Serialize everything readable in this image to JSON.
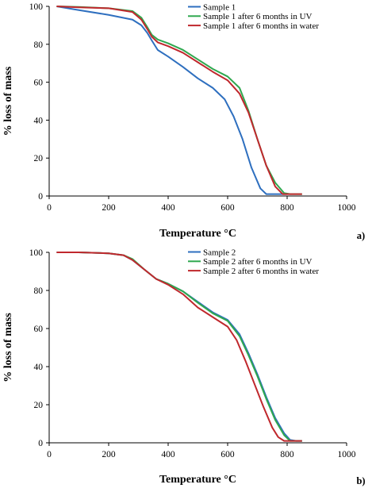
{
  "chart_data": [
    {
      "type": "line",
      "panel_label": "a)",
      "xlabel": "Temperature °C",
      "ylabel": "% loss of mass",
      "xlim": [
        0,
        1000
      ],
      "ylim": [
        0,
        100
      ],
      "xticks": [
        "0",
        "200",
        "400",
        "600",
        "800",
        "1000"
      ],
      "yticks": [
        "0",
        "20",
        "40",
        "60",
        "80",
        "100"
      ],
      "grid": false,
      "legend_position": "top-right",
      "series": [
        {
          "name": "Sample 1",
          "color": "#2e6fbf",
          "points": [
            [
              25,
              100
            ],
            [
              100,
              98
            ],
            [
              200,
              95.5
            ],
            [
              280,
              93
            ],
            [
              310,
              90
            ],
            [
              330,
              86
            ],
            [
              345,
              82
            ],
            [
              365,
              77
            ],
            [
              400,
              73.5
            ],
            [
              450,
              68
            ],
            [
              500,
              62
            ],
            [
              550,
              57
            ],
            [
              590,
              51
            ],
            [
              620,
              42
            ],
            [
              650,
              30
            ],
            [
              680,
              15
            ],
            [
              710,
              4
            ],
            [
              730,
              1
            ],
            [
              800,
              1
            ]
          ]
        },
        {
          "name": "Sample 1 after 6 months in UV",
          "color": "#2fa84f",
          "points": [
            [
              25,
              100
            ],
            [
              100,
              99.7
            ],
            [
              200,
              99
            ],
            [
              280,
              97.5
            ],
            [
              310,
              94
            ],
            [
              330,
              89
            ],
            [
              345,
              85
            ],
            [
              365,
              82.5
            ],
            [
              400,
              80.5
            ],
            [
              450,
              77
            ],
            [
              500,
              72
            ],
            [
              550,
              67
            ],
            [
              600,
              63
            ],
            [
              640,
              57
            ],
            [
              670,
              45
            ],
            [
              700,
              30
            ],
            [
              730,
              16
            ],
            [
              760,
              7
            ],
            [
              790,
              1.5
            ],
            [
              810,
              1
            ],
            [
              850,
              1
            ]
          ]
        },
        {
          "name": "Sample 1 after 6 months in water",
          "color": "#c0282d",
          "points": [
            [
              25,
              100
            ],
            [
              100,
              99.5
            ],
            [
              200,
              99
            ],
            [
              280,
              97
            ],
            [
              310,
              93
            ],
            [
              330,
              88
            ],
            [
              345,
              84
            ],
            [
              365,
              81
            ],
            [
              400,
              79
            ],
            [
              450,
              75.5
            ],
            [
              500,
              70.5
            ],
            [
              550,
              65.5
            ],
            [
              600,
              61
            ],
            [
              640,
              54
            ],
            [
              670,
              44
            ],
            [
              700,
              30
            ],
            [
              730,
              16
            ],
            [
              760,
              5
            ],
            [
              785,
              1
            ],
            [
              850,
              1
            ]
          ]
        }
      ]
    },
    {
      "type": "line",
      "panel_label": "b)",
      "xlabel": "Temperature °C",
      "ylabel": "% loss of mass",
      "xlim": [
        0,
        1000
      ],
      "ylim": [
        0,
        100
      ],
      "xticks": [
        "0",
        "200",
        "400",
        "600",
        "800",
        "1000"
      ],
      "yticks": [
        "0",
        "20",
        "40",
        "60",
        "80",
        "100"
      ],
      "grid": false,
      "legend_position": "top-right",
      "series": [
        {
          "name": "Sample 2",
          "color": "#2e6fbf",
          "points": [
            [
              25,
              100
            ],
            [
              100,
              100
            ],
            [
              200,
              99.5
            ],
            [
              250,
              98.5
            ],
            [
              280,
              96
            ],
            [
              320,
              91
            ],
            [
              360,
              86
            ],
            [
              400,
              83.5
            ],
            [
              450,
              79.5
            ],
            [
              500,
              74
            ],
            [
              550,
              68.5
            ],
            [
              600,
              64.5
            ],
            [
              640,
              57
            ],
            [
              670,
              47
            ],
            [
              700,
              36
            ],
            [
              730,
              24
            ],
            [
              760,
              13
            ],
            [
              790,
              5
            ],
            [
              810,
              1.5
            ],
            [
              830,
              1
            ],
            [
              850,
              1
            ]
          ]
        },
        {
          "name": "Sample 2 after 6 months in UV",
          "color": "#2fa84f",
          "points": [
            [
              25,
              100
            ],
            [
              100,
              100
            ],
            [
              200,
              99.5
            ],
            [
              250,
              98.5
            ],
            [
              280,
              96.5
            ],
            [
              320,
              91
            ],
            [
              360,
              86
            ],
            [
              400,
              83.5
            ],
            [
              450,
              79.5
            ],
            [
              500,
              73.5
            ],
            [
              550,
              68
            ],
            [
              600,
              64
            ],
            [
              640,
              56
            ],
            [
              670,
              46
            ],
            [
              700,
              35
            ],
            [
              730,
              23
            ],
            [
              760,
              12
            ],
            [
              790,
              4
            ],
            [
              810,
              1
            ],
            [
              850,
              1
            ]
          ]
        },
        {
          "name": "Sample 2 after 6 months in water",
          "color": "#c0282d",
          "points": [
            [
              25,
              100
            ],
            [
              100,
              100
            ],
            [
              200,
              99.5
            ],
            [
              250,
              98.5
            ],
            [
              280,
              96
            ],
            [
              320,
              91
            ],
            [
              360,
              86
            ],
            [
              400,
              83
            ],
            [
              450,
              78
            ],
            [
              500,
              71
            ],
            [
              550,
              66
            ],
            [
              600,
              61
            ],
            [
              630,
              54
            ],
            [
              660,
              43
            ],
            [
              690,
              31
            ],
            [
              720,
              19
            ],
            [
              750,
              8
            ],
            [
              770,
              3
            ],
            [
              790,
              1
            ],
            [
              850,
              1
            ]
          ]
        }
      ]
    }
  ]
}
